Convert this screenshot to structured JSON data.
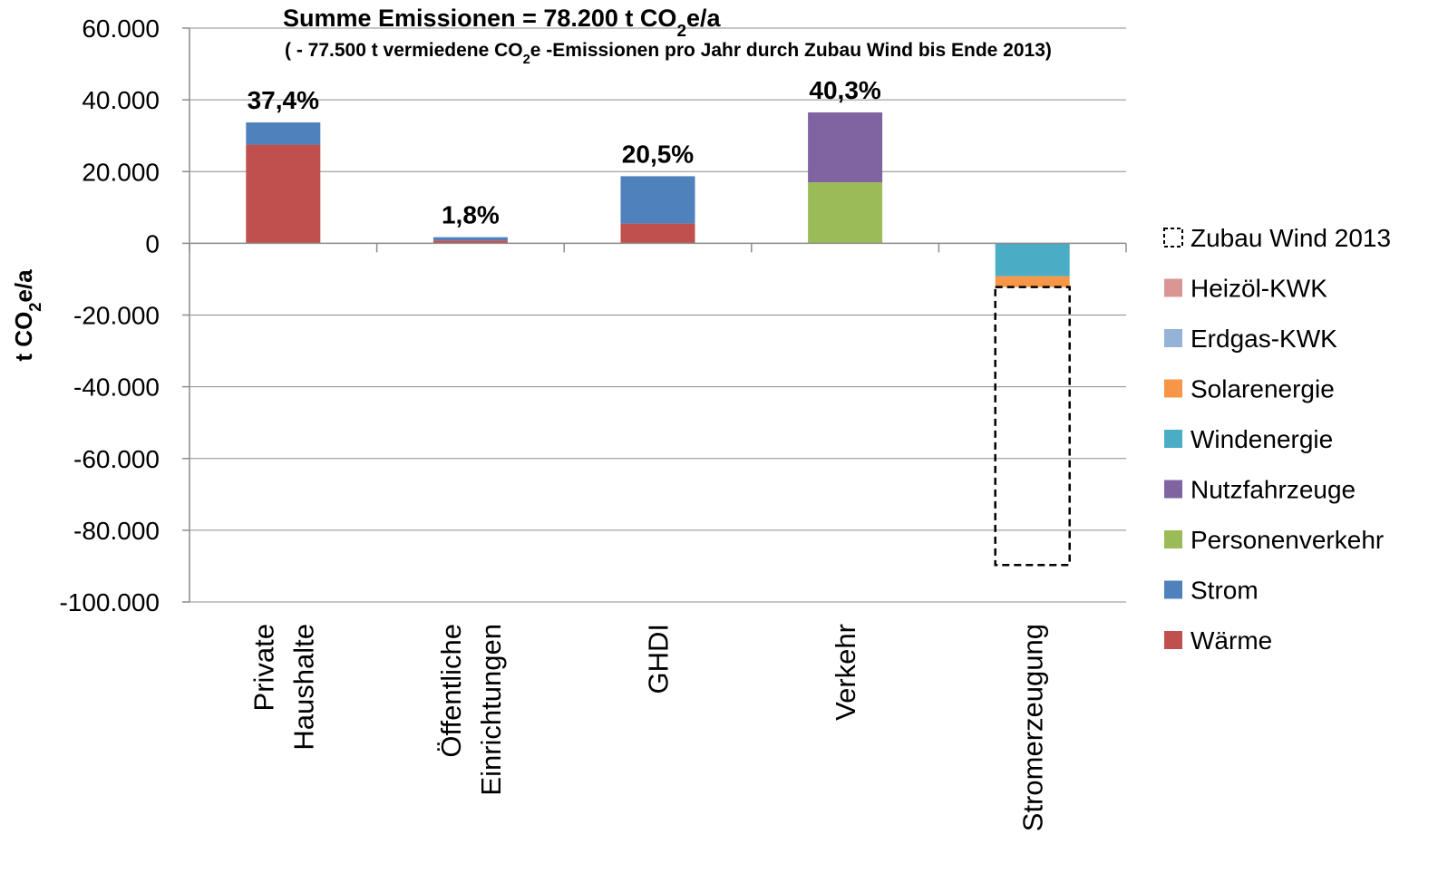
{
  "chart_data": {
    "type": "bar",
    "stacked": true,
    "title": "Summe Emissionen = 78.200 t CO₂e/a",
    "subtitle": "( - 77.500 t vermiedene CO₂e -Emissionen pro Jahr durch Zubau Wind bis Ende 2013)",
    "ylabel": "t CO₂e/a",
    "xlabel": "",
    "ylim": [
      -100000,
      60000
    ],
    "y_ticks": [
      60000,
      40000,
      20000,
      0,
      -20000,
      -40000,
      -60000,
      -80000,
      -100000
    ],
    "y_tick_labels": [
      "60.000",
      "40.000",
      "20.000",
      "0",
      "-20.000",
      "-40.000",
      "-60.000",
      "-80.000",
      "-100.000"
    ],
    "grid": true,
    "legend_position": "right",
    "categories": [
      [
        "Private",
        "Haushalte"
      ],
      [
        "Öffentliche",
        "Einrichtungen"
      ],
      [
        "GHDI"
      ],
      [
        "Verkehr"
      ],
      [
        "Stromerzeugung"
      ]
    ],
    "percent_labels": [
      "37,4%",
      "1,8%",
      "20,5%",
      "40,3%",
      ""
    ],
    "series": [
      {
        "name": "Wärme",
        "color": "#C0504D",
        "values": [
          27500,
          800,
          5500,
          0,
          0
        ]
      },
      {
        "name": "Strom",
        "color": "#4F81BD",
        "values": [
          6200,
          900,
          13200,
          0,
          0
        ]
      },
      {
        "name": "Personenverkehr",
        "color": "#9BBB59",
        "values": [
          0,
          0,
          0,
          17000,
          0
        ]
      },
      {
        "name": "Nutzfahrzeuge",
        "color": "#8064A2",
        "values": [
          0,
          0,
          0,
          19500,
          0
        ]
      },
      {
        "name": "Windenergie",
        "color": "#4BACC6",
        "values": [
          0,
          0,
          0,
          0,
          -9200
        ]
      },
      {
        "name": "Solarenergie",
        "color": "#F79646",
        "values": [
          0,
          0,
          0,
          0,
          -3000
        ]
      },
      {
        "name": "Erdgas-KWK",
        "color": "#95B3D7",
        "values": [
          0,
          0,
          0,
          0,
          0
        ]
      },
      {
        "name": "Heizöl-KWK",
        "color": "#D99694",
        "values": [
          0,
          0,
          0,
          0,
          0
        ]
      },
      {
        "name": "Zubau Wind 2013",
        "color": "none",
        "dashed": true,
        "values": [
          0,
          0,
          0,
          0,
          -77500
        ]
      }
    ]
  }
}
